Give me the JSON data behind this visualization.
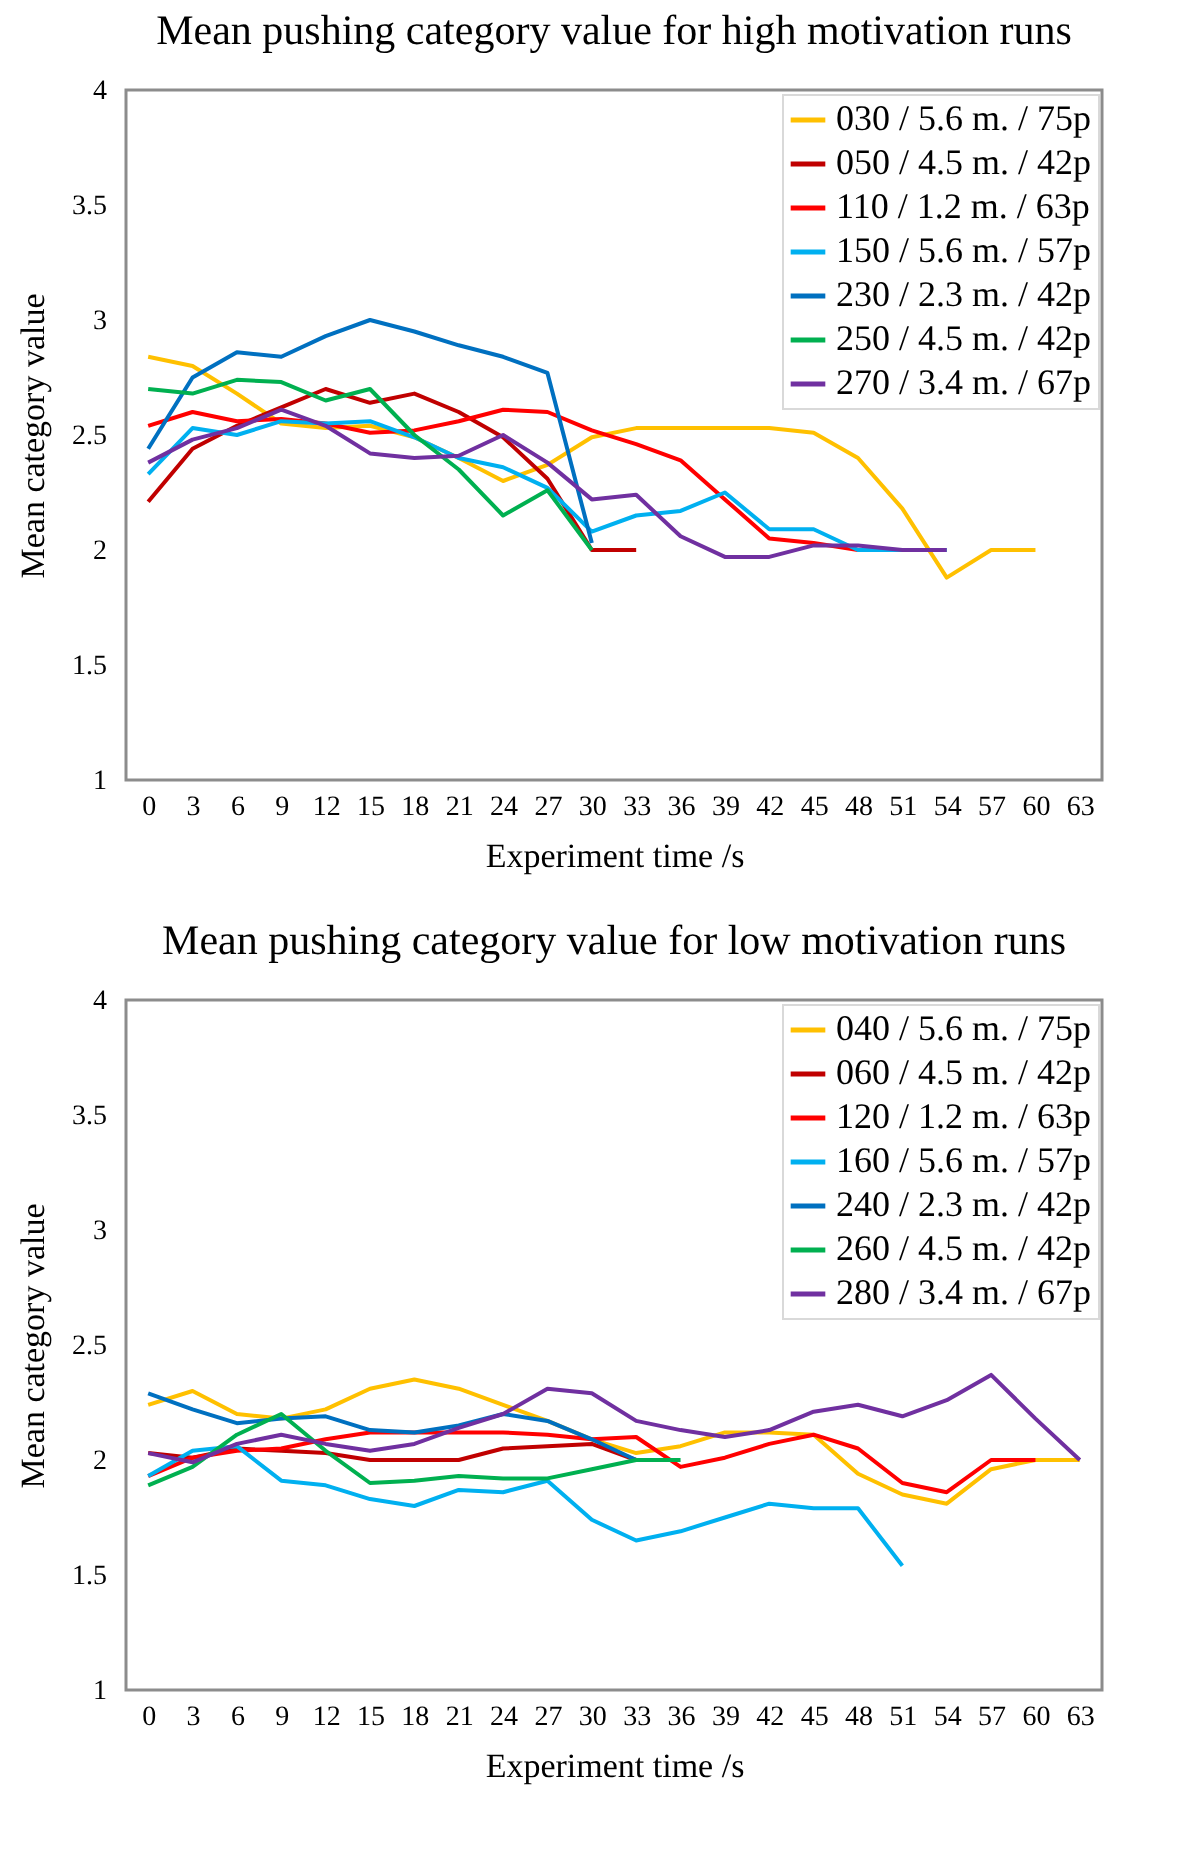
{
  "chart_data": [
    {
      "type": "line",
      "title": "Mean pushing category value for high motivation runs",
      "xlabel": "Experiment time /s",
      "ylabel": "Mean category value",
      "legend": "top right",
      "x": [
        0,
        3,
        6,
        9,
        12,
        15,
        18,
        21,
        24,
        27,
        30,
        33,
        36,
        39,
        42,
        45,
        48,
        51,
        54,
        57,
        60
      ],
      "xlim": [
        -1.5,
        64.5
      ],
      "xticks": [
        0,
        3,
        6,
        9,
        12,
        15,
        18,
        21,
        24,
        27,
        30,
        33,
        36,
        39,
        42,
        45,
        48,
        51,
        54,
        57,
        60,
        63
      ],
      "ylim": [
        1,
        4
      ],
      "yticks": [
        1,
        1.5,
        2,
        2.5,
        3,
        3.5,
        4
      ],
      "series": [
        {
          "name": "030 / 5.6 m. / 75p",
          "color": "#ffc000",
          "values": [
            2.84,
            2.8,
            2.68,
            2.55,
            2.53,
            2.54,
            2.49,
            2.4,
            2.3,
            2.37,
            2.49,
            2.53,
            2.53,
            2.53,
            2.53,
            2.51,
            2.4,
            2.18,
            1.88,
            2.0,
            2.0
          ]
        },
        {
          "name": "050 / 4.5 m. / 42p",
          "color": "#c00000",
          "values": [
            2.21,
            2.44,
            2.54,
            2.62,
            2.7,
            2.64,
            2.68,
            2.6,
            2.49,
            2.31,
            2.0,
            2.0,
            null,
            null,
            null,
            null,
            null,
            null,
            null,
            null,
            null
          ]
        },
        {
          "name": "110 / 1.2 m. / 63p",
          "color": "#ff0000",
          "values": [
            2.54,
            2.6,
            2.56,
            2.57,
            2.55,
            2.51,
            2.52,
            2.56,
            2.61,
            2.6,
            2.52,
            2.46,
            2.39,
            2.22,
            2.05,
            2.03,
            2.0,
            null,
            null,
            null,
            null
          ]
        },
        {
          "name": "150 / 5.6 m. / 57p",
          "color": "#00b0f0",
          "values": [
            2.33,
            2.53,
            2.5,
            2.56,
            2.55,
            2.56,
            2.49,
            2.4,
            2.36,
            2.27,
            2.08,
            2.15,
            2.17,
            2.25,
            2.09,
            2.09,
            2.0,
            2.0,
            2.0,
            null,
            null
          ]
        },
        {
          "name": "230 / 2.3 m. / 42p",
          "color": "#0070c0",
          "values": [
            2.44,
            2.75,
            2.86,
            2.84,
            2.93,
            3.0,
            2.95,
            2.89,
            2.84,
            2.77,
            2.03,
            null,
            null,
            null,
            null,
            null,
            null,
            null,
            null,
            null,
            null
          ]
        },
        {
          "name": "250 / 4.5 m. / 42p",
          "color": "#00b050",
          "values": [
            2.7,
            2.68,
            2.74,
            2.73,
            2.65,
            2.7,
            2.5,
            2.35,
            2.15,
            2.26,
            2.0,
            null,
            null,
            null,
            null,
            null,
            null,
            null,
            null,
            null,
            null
          ]
        },
        {
          "name": "270 / 3.4 m. / 67p",
          "color": "#7030a0",
          "values": [
            2.38,
            2.48,
            2.53,
            2.61,
            2.54,
            2.42,
            2.4,
            2.41,
            2.5,
            2.38,
            2.22,
            2.24,
            2.06,
            1.97,
            1.97,
            2.02,
            2.02,
            2.0,
            2.0,
            null,
            null
          ]
        }
      ]
    },
    {
      "type": "line",
      "title": "Mean pushing category value for low motivation runs",
      "xlabel": "Experiment time /s",
      "ylabel": "Mean category value",
      "legend": "top right",
      "x": [
        0,
        3,
        6,
        9,
        12,
        15,
        18,
        21,
        24,
        27,
        30,
        33,
        36,
        39,
        42,
        45,
        48,
        51,
        54,
        57,
        60,
        63
      ],
      "xlim": [
        -1.5,
        64.5
      ],
      "xticks": [
        0,
        3,
        6,
        9,
        12,
        15,
        18,
        21,
        24,
        27,
        30,
        33,
        36,
        39,
        42,
        45,
        48,
        51,
        54,
        57,
        60,
        63
      ],
      "ylim": [
        1,
        4
      ],
      "yticks": [
        1,
        1.5,
        2,
        2.5,
        3,
        3.5,
        4
      ],
      "series": [
        {
          "name": "040 / 5.6 m. / 75p",
          "color": "#ffc000",
          "values": [
            2.24,
            2.3,
            2.2,
            2.18,
            2.22,
            2.31,
            2.35,
            2.31,
            2.24,
            2.17,
            2.09,
            2.03,
            2.06,
            2.12,
            2.12,
            2.11,
            1.94,
            1.85,
            1.81,
            1.96,
            2.0,
            2.0
          ]
        },
        {
          "name": "060 / 4.5 m. / 42p",
          "color": "#c00000",
          "values": [
            2.03,
            2.01,
            2.05,
            2.04,
            2.03,
            2.0,
            2.0,
            2.0,
            2.05,
            2.06,
            2.07,
            2.0,
            null,
            null,
            null,
            null,
            null,
            null,
            null,
            null,
            null,
            null
          ]
        },
        {
          "name": "120 / 1.2 m. / 63p",
          "color": "#ff0000",
          "values": [
            1.93,
            2.01,
            2.04,
            2.05,
            2.09,
            2.12,
            2.12,
            2.12,
            2.12,
            2.11,
            2.09,
            2.1,
            1.97,
            2.01,
            2.07,
            2.11,
            2.05,
            1.9,
            1.86,
            2.0,
            2.0,
            null
          ]
        },
        {
          "name": "160 / 5.6 m. / 57p",
          "color": "#00b0f0",
          "values": [
            1.93,
            2.04,
            2.06,
            1.91,
            1.89,
            1.83,
            1.8,
            1.87,
            1.86,
            1.91,
            1.74,
            1.65,
            1.69,
            1.75,
            1.81,
            1.79,
            1.79,
            1.54,
            null,
            null,
            null,
            null
          ]
        },
        {
          "name": "240 / 2.3 m. / 42p",
          "color": "#0070c0",
          "values": [
            2.29,
            2.22,
            2.16,
            2.18,
            2.19,
            2.13,
            2.12,
            2.15,
            2.2,
            2.17,
            2.09,
            2.0,
            null,
            null,
            null,
            null,
            null,
            null,
            null,
            null,
            null,
            null
          ]
        },
        {
          "name": "260 / 4.5 m. / 42p",
          "color": "#00b050",
          "values": [
            1.89,
            1.97,
            2.11,
            2.2,
            2.04,
            1.9,
            1.91,
            1.93,
            1.92,
            1.92,
            1.96,
            2.0,
            2.0,
            null,
            null,
            null,
            null,
            null,
            null,
            null,
            null,
            null
          ]
        },
        {
          "name": "280 / 3.4 m. / 67p",
          "color": "#7030a0",
          "values": [
            2.03,
            1.99,
            2.07,
            2.11,
            2.07,
            2.04,
            2.07,
            2.14,
            2.2,
            2.31,
            2.29,
            2.17,
            2.13,
            2.1,
            2.13,
            2.21,
            2.24,
            2.19,
            2.26,
            2.37,
            2.18,
            2.0
          ]
        }
      ]
    }
  ]
}
